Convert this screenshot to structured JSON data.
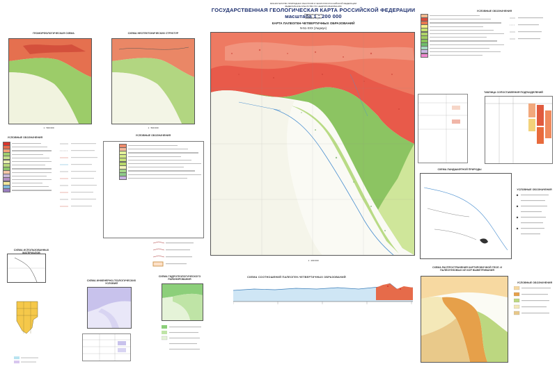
{
  "header": {
    "ministry_line1": "МИНИСТЕРСТВО ПРИРОДНЫХ РЕСУРСОВ И ЭКОЛОГИИ РОССИЙСКОЙ ФЕДЕРАЦИИ",
    "ministry_line2": "ФЕДЕРАЛЬНОЕ АГЕНТСТВО ПО НЕДРОПОЛЬЗОВАНИЮ",
    "title": "ГОСУДАРСТВЕННАЯ  ГЕОЛОГИЧЕСКАЯ  КАРТА  РОССИЙСКОЙ  ФЕДЕРАЦИИ  масштаба  1 : 200 000",
    "edition": "Издание второе",
    "series": "Зейская серия"
  },
  "main_map": {
    "title": "КАРТА  ПАЛЕОГЕН-ЧЕТВЕРТИЧНЫХ  ОБРАЗОВАНИЙ",
    "sheet": "N-51-XXX (Ушумун)",
    "scale": "1 : 200 000"
  },
  "left_top_maps": {
    "geomorph_title": "ГЕОМОРФОЛОГИЧЕСКАЯ  СХЕМА",
    "neotect_title": "СХЕМА  НЕОТЕКТОНИЧЕСКИХ  СТРУКТУР",
    "scale": "1 : 500 000"
  },
  "left_legend": {
    "title": "УСЛОВНЫЕ  ОБОЗНАЧЕНИЯ",
    "colors": [
      "#d9342b",
      "#e86a4a",
      "#f4a07a",
      "#9fcf6e",
      "#c4e08c",
      "#e7f0b0",
      "#b8d87a",
      "#8bc56a",
      "#f6c6a8",
      "#c9b8d8",
      "#b48fc4",
      "#f3e89b",
      "#7fb7d9",
      "#9a7ec0"
    ]
  },
  "center_legend": {
    "title": "УСЛОВНЫЕ  ОБОЗНАЧЕНИЯ",
    "colors": [
      "#ee8a6b",
      "#f3b79a",
      "#e3f29a",
      "#d5ea86",
      "#c7e07a",
      "#b8d86b",
      "#f2f5b9",
      "#a6d68a",
      "#8fcb8a",
      "#c7b3e0"
    ]
  },
  "right_legend": {
    "title": "УСЛОВНЫЕ  ОБОЗНАЧЕНИЯ",
    "colors": [
      "#f2b98e",
      "#d94b3b",
      "#e7784f",
      "#f6f08a",
      "#c7e26f",
      "#b0d46a",
      "#9fcd5e",
      "#88c35a",
      "#6fbf6a",
      "#a6d9c2",
      "#c9b9e2",
      "#f08ad0"
    ]
  },
  "correlation": {
    "title": "ТАБЛИЦА  СОПОСТАВЛЕНИЯ  ПОДРАЗДЕЛЕНИЙ",
    "colors": [
      "#f2a87c",
      "#e05b3e",
      "#f3d27a",
      "#f08a5c",
      "#e86b3c"
    ]
  },
  "landscape": {
    "title": "СХЕМА  ЛАНДШАФТНОЙ  ПРИРОДЫ",
    "legend_title": "УСЛОВНЫЕ  ОБОЗНАЧЕНИЯ"
  },
  "bottom_right": {
    "title": "СХЕМА  РАСПРОСТРАНЕНИЯ КАРТИРОВОЧНОЙ  ГЕОЛ.  И  ПАЛЕОГЕНОВЫХ  ИЛ  КОР  ВЫВЕТРИВАНИЯ",
    "legend_title": "УСЛОВНЫЕ  ОБОЗНАЧЕНИЯ"
  },
  "bottom_left": {
    "usage_title": "СХЕМА  ИСПОЛЬЗОВАННЫХ  МАТЕРИАЛОВ",
    "ingeo_title": "СХЕМА  ИНЖЕНЕРНО-ГЕОЛОГИЧЕСКИХ  УСЛОВИЙ",
    "hydro_title": "СХЕМА  ГИДРОГЕОЛОГИЧЕСКОГО  РАЙОНИРОВАНИЯ",
    "scale": "1 : 500 000"
  },
  "profile": {
    "title": "СХЕМА  СООТНОШЕНИЙ  ПАЛЕОГЕН-ЧЕТВЕРТИЧНЫХ  ОБРАЗОВАНИЙ"
  }
}
